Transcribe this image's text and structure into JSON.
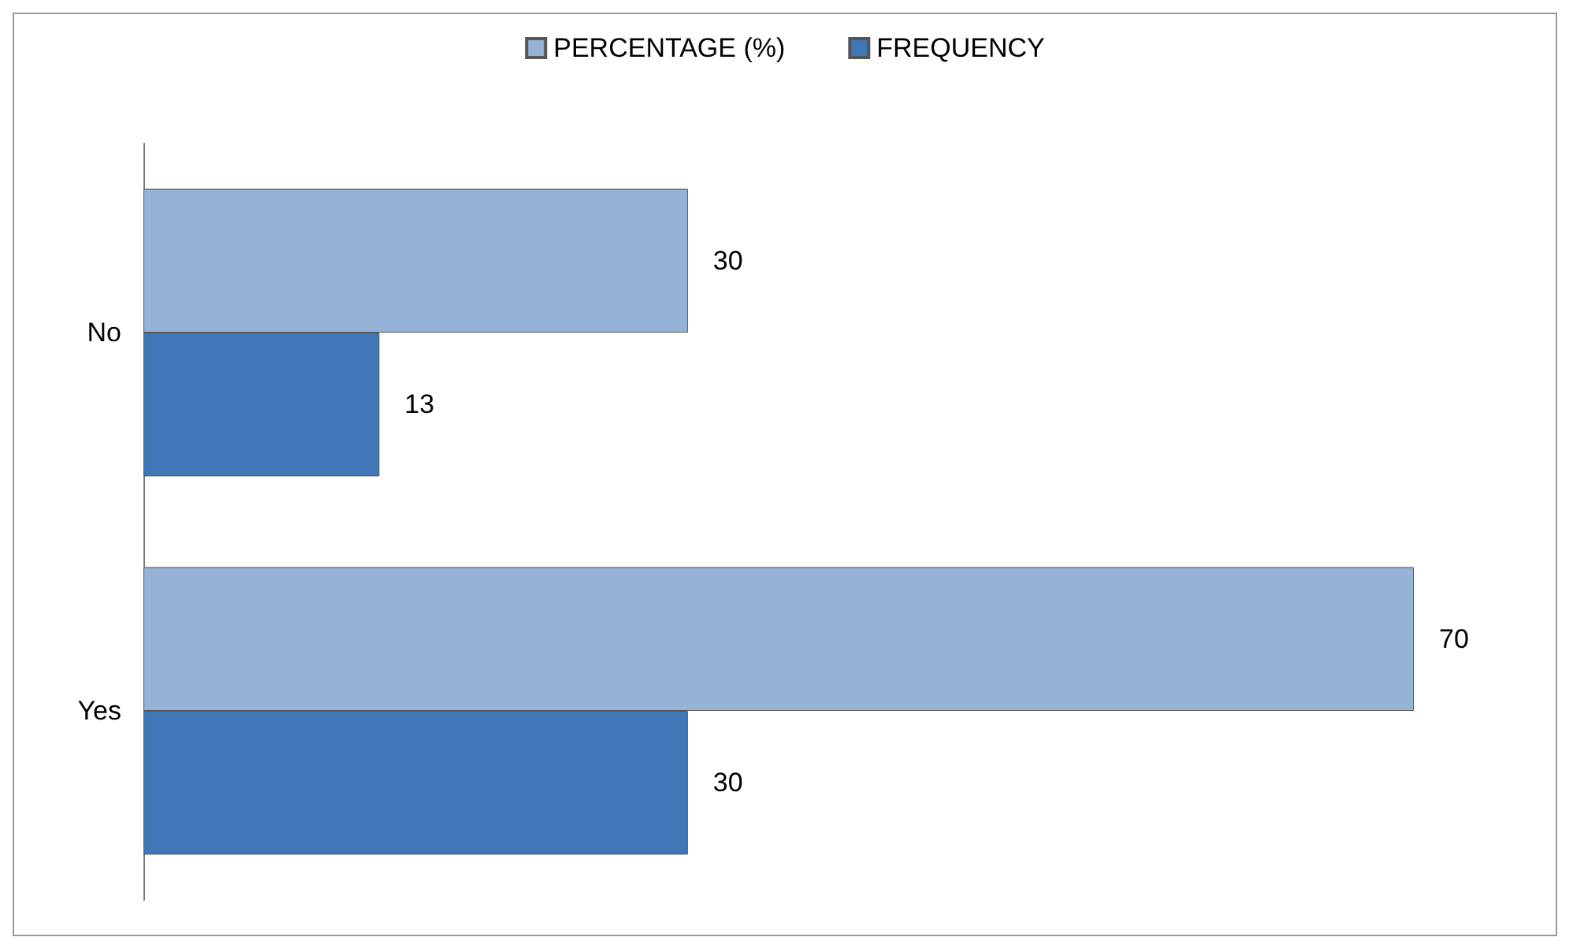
{
  "chart_data": {
    "type": "bar",
    "orientation": "horizontal",
    "categories": [
      "No",
      "Yes"
    ],
    "series": [
      {
        "name": "PERCENTAGE (%)",
        "color": "#95b3d7",
        "values": [
          30,
          70
        ]
      },
      {
        "name": "FREQUENCY",
        "color": "#3f77b9",
        "values": [
          13,
          30
        ]
      }
    ],
    "tick_labels": "y",
    "data_labels": true,
    "legend": "top",
    "grid": false
  }
}
